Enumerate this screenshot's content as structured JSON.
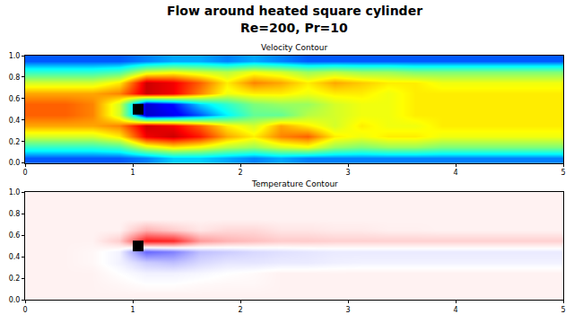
{
  "title": "Flow around heated square cylinder",
  "subtitle": "Re=200, Pr=10",
  "chart_data": [
    {
      "type": "heatmap",
      "title": "Velocity Contour",
      "color": "jet",
      "x": [
        0.125,
        0.375,
        0.625,
        0.875,
        1.125,
        1.375,
        1.625,
        1.875,
        2.125,
        2.375,
        2.625,
        2.875,
        3.125,
        3.375,
        3.625,
        3.875,
        4.125,
        4.375,
        4.625,
        4.875
      ],
      "y": [
        0.05,
        0.15,
        0.25,
        0.35,
        0.45,
        0.55,
        0.65,
        0.75,
        0.85,
        0.95
      ],
      "z": [
        [
          0.3,
          0.3,
          0.3,
          0.3,
          0.35,
          0.45,
          0.45,
          0.4,
          0.35,
          0.4,
          0.35,
          0.35,
          0.35,
          0.35,
          0.35,
          0.35,
          0.35,
          0.35,
          0.35,
          0.35
        ],
        [
          0.6,
          0.6,
          0.6,
          0.65,
          0.9,
          1.0,
          0.95,
          0.85,
          0.8,
          0.9,
          0.95,
          0.8,
          0.75,
          0.8,
          0.8,
          0.75,
          0.75,
          0.75,
          0.75,
          0.75
        ],
        [
          0.9,
          0.9,
          0.9,
          1.0,
          1.35,
          1.4,
          1.3,
          1.1,
          1.0,
          1.15,
          1.2,
          1.0,
          0.95,
          1.0,
          1.0,
          0.95,
          0.95,
          0.95,
          0.95,
          0.95
        ],
        [
          1.1,
          1.1,
          1.1,
          1.15,
          1.4,
          1.35,
          1.2,
          1.0,
          0.9,
          1.1,
          1.0,
          0.9,
          1.0,
          0.95,
          0.95,
          1.0,
          1.0,
          1.0,
          1.0,
          1.0
        ],
        [
          1.2,
          1.2,
          1.15,
          0.9,
          0.1,
          0.15,
          0.3,
          0.5,
          0.7,
          0.7,
          0.85,
          0.9,
          0.95,
          0.95,
          1.0,
          1.0,
          1.0,
          1.0,
          1.0,
          1.0
        ],
        [
          1.2,
          1.2,
          1.15,
          0.9,
          0.1,
          0.2,
          0.45,
          0.6,
          0.75,
          0.8,
          0.8,
          0.9,
          0.95,
          0.95,
          1.0,
          1.0,
          1.0,
          1.0,
          1.0,
          1.0
        ],
        [
          1.1,
          1.1,
          1.1,
          1.15,
          1.4,
          1.35,
          1.15,
          0.95,
          1.0,
          1.0,
          0.95,
          1.0,
          1.0,
          0.95,
          1.0,
          1.0,
          1.0,
          1.0,
          1.0,
          1.0
        ],
        [
          0.9,
          0.9,
          0.9,
          1.0,
          1.4,
          1.35,
          1.2,
          1.0,
          1.15,
          1.1,
          1.0,
          1.1,
          1.05,
          1.0,
          1.0,
          0.95,
          0.95,
          0.95,
          0.95,
          0.95
        ],
        [
          0.6,
          0.6,
          0.6,
          0.65,
          0.9,
          0.95,
          0.9,
          0.85,
          0.95,
          0.9,
          0.8,
          0.85,
          0.8,
          0.8,
          0.75,
          0.75,
          0.75,
          0.75,
          0.75,
          0.75
        ],
        [
          0.3,
          0.3,
          0.3,
          0.3,
          0.35,
          0.4,
          0.4,
          0.35,
          0.4,
          0.35,
          0.3,
          0.3,
          0.3,
          0.3,
          0.3,
          0.3,
          0.3,
          0.3,
          0.3,
          0.3
        ]
      ],
      "zlim": [
        0,
        1.5
      ],
      "obstacle": {
        "x": [
          1.0,
          1.1
        ],
        "y": [
          0.45,
          0.55
        ]
      },
      "xlim": [
        0,
        5
      ],
      "xticks": [
        0,
        1,
        2,
        3,
        4,
        5
      ],
      "ylim": [
        0,
        1
      ],
      "yticks": [
        {
          "value": 0,
          "label": "0.0"
        },
        {
          "value": 0.2,
          "label": "0.2"
        },
        {
          "value": 0.4,
          "label": "0.4"
        },
        {
          "value": 0.6,
          "label": "0.6"
        },
        {
          "value": 0.8,
          "label": "0.8"
        },
        {
          "value": 1,
          "label": "1.0"
        }
      ]
    },
    {
      "type": "heatmap",
      "title": "Temperature Contour",
      "color": "bwr",
      "x": [
        0.125,
        0.375,
        0.625,
        0.875,
        1.125,
        1.375,
        1.625,
        1.875,
        2.125,
        2.375,
        2.625,
        2.875,
        3.125,
        3.375,
        3.625,
        3.875,
        4.125,
        4.375,
        4.625,
        4.875
      ],
      "y": [
        0.05,
        0.15,
        0.25,
        0.35,
        0.45,
        0.55,
        0.65,
        0.75,
        0.85,
        0.95
      ],
      "z": [
        [
          0.05,
          0.05,
          0.05,
          0.05,
          0.05,
          0.05,
          0.05,
          0.05,
          0.05,
          0.05,
          0.05,
          0.05,
          0.05,
          0.05,
          0.05,
          0.05,
          0.05,
          0.05,
          0.05,
          0.05
        ],
        [
          0.05,
          0.05,
          0.05,
          0.03,
          0.0,
          0.0,
          0.02,
          0.03,
          0.03,
          0.05,
          0.05,
          0.05,
          0.05,
          0.05,
          0.05,
          0.05,
          0.05,
          0.05,
          0.05,
          0.05
        ],
        [
          0.05,
          0.05,
          0.05,
          0.0,
          -0.05,
          -0.05,
          -0.03,
          0.0,
          0.02,
          0.05,
          0.05,
          0.05,
          0.05,
          0.05,
          0.05,
          0.05,
          0.05,
          0.05,
          0.05,
          0.05
        ],
        [
          0.05,
          0.05,
          0.03,
          -0.05,
          -0.2,
          -0.25,
          -0.15,
          -0.1,
          -0.1,
          -0.08,
          -0.08,
          -0.06,
          -0.05,
          -0.05,
          -0.05,
          -0.05,
          -0.05,
          -0.05,
          -0.05,
          -0.05
        ],
        [
          0.05,
          0.05,
          0.03,
          -0.05,
          -0.6,
          -0.5,
          -0.25,
          -0.2,
          -0.15,
          -0.12,
          -0.1,
          -0.08,
          -0.08,
          -0.08,
          -0.08,
          -0.08,
          -0.08,
          -0.08,
          -0.08,
          -0.08
        ],
        [
          0.05,
          0.05,
          0.05,
          0.2,
          0.9,
          0.85,
          0.4,
          0.3,
          0.25,
          0.2,
          0.2,
          0.18,
          0.18,
          0.18,
          0.18,
          0.18,
          0.18,
          0.18,
          0.18,
          0.18
        ],
        [
          0.05,
          0.05,
          0.05,
          0.05,
          0.3,
          0.2,
          0.1,
          0.15,
          0.15,
          0.1,
          0.1,
          0.08,
          0.08,
          0.06,
          0.06,
          0.05,
          0.05,
          0.05,
          0.05,
          0.05
        ],
        [
          0.05,
          0.05,
          0.05,
          0.05,
          0.05,
          0.05,
          0.05,
          0.05,
          0.05,
          0.05,
          0.05,
          0.05,
          0.05,
          0.05,
          0.05,
          0.05,
          0.05,
          0.05,
          0.05,
          0.05
        ],
        [
          0.05,
          0.05,
          0.05,
          0.05,
          0.05,
          0.05,
          0.05,
          0.05,
          0.05,
          0.05,
          0.05,
          0.05,
          0.05,
          0.05,
          0.05,
          0.05,
          0.05,
          0.05,
          0.05,
          0.05
        ],
        [
          0.05,
          0.05,
          0.05,
          0.05,
          0.05,
          0.05,
          0.05,
          0.05,
          0.05,
          0.05,
          0.05,
          0.05,
          0.05,
          0.05,
          0.05,
          0.05,
          0.05,
          0.05,
          0.05,
          0.05
        ]
      ],
      "zlim": [
        -1,
        1
      ],
      "obstacle": {
        "x": [
          1.0,
          1.1
        ],
        "y": [
          0.45,
          0.55
        ]
      },
      "xlim": [
        0,
        5
      ],
      "xticks": [
        0,
        1,
        2,
        3,
        4,
        5
      ],
      "ylim": [
        0,
        1
      ],
      "yticks": [
        {
          "value": 0,
          "label": "0.0"
        },
        {
          "value": 0.2,
          "label": "0.2"
        },
        {
          "value": 0.4,
          "label": "0.4"
        },
        {
          "value": 0.6,
          "label": "0.6"
        },
        {
          "value": 0.8,
          "label": "0.8"
        },
        {
          "value": 1,
          "label": "1.0"
        }
      ]
    }
  ]
}
